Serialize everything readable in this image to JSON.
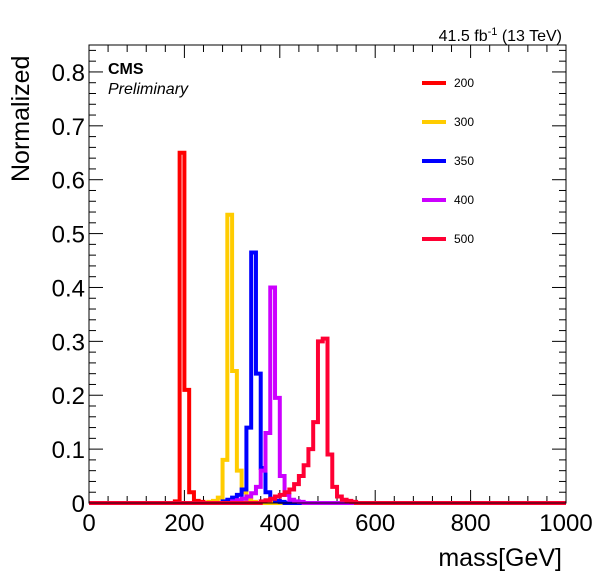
{
  "chart_data": {
    "type": "line",
    "lumi_label": "41.5 fb",
    "lumi_exponent": "-1",
    "energy_label": " (13 TeV)",
    "cms_label": "CMS",
    "preliminary_label": "Preliminary",
    "xlabel": "mass[GeV]",
    "ylabel": "Normalized",
    "xlim": [
      0,
      1000
    ],
    "ylim": [
      0,
      0.85
    ],
    "x_ticks": [
      0,
      200,
      400,
      600,
      800,
      1000
    ],
    "y_ticks": [
      0,
      0.1,
      0.2,
      0.3,
      0.4,
      0.5,
      0.6,
      0.7,
      0.8
    ],
    "bin_width": 10,
    "legend_position": "top-right",
    "series": [
      {
        "name": "200",
        "color": "#ff0000",
        "bins": [
          [
            180,
            0.003
          ],
          [
            190,
            0.65
          ],
          [
            200,
            0.21
          ],
          [
            210,
            0.02
          ],
          [
            220,
            0.004
          ],
          [
            230,
            0.002
          ]
        ]
      },
      {
        "name": "300",
        "color": "#ffcc00",
        "bins": [
          [
            250,
            0.002
          ],
          [
            260,
            0.004
          ],
          [
            270,
            0.01
          ],
          [
            280,
            0.08
          ],
          [
            290,
            0.535
          ],
          [
            300,
            0.245
          ],
          [
            310,
            0.06
          ],
          [
            320,
            0.02
          ],
          [
            330,
            0.006
          ],
          [
            340,
            0.002
          ]
        ]
      },
      {
        "name": "350",
        "color": "#0000ff",
        "bins": [
          [
            280,
            0.003
          ],
          [
            290,
            0.006
          ],
          [
            300,
            0.01
          ],
          [
            310,
            0.015
          ],
          [
            320,
            0.025
          ],
          [
            330,
            0.14
          ],
          [
            340,
            0.465
          ],
          [
            350,
            0.24
          ],
          [
            360,
            0.065
          ],
          [
            370,
            0.02
          ],
          [
            380,
            0.008
          ],
          [
            390,
            0.004
          ],
          [
            400,
            0.002
          ]
        ]
      },
      {
        "name": "400",
        "color": "#cc00ff",
        "bins": [
          [
            300,
            0.003
          ],
          [
            310,
            0.005
          ],
          [
            320,
            0.008
          ],
          [
            330,
            0.012
          ],
          [
            340,
            0.018
          ],
          [
            350,
            0.03
          ],
          [
            360,
            0.06
          ],
          [
            370,
            0.13
          ],
          [
            380,
            0.4
          ],
          [
            390,
            0.195
          ],
          [
            400,
            0.05
          ],
          [
            410,
            0.015
          ],
          [
            420,
            0.006
          ],
          [
            430,
            0.003
          ],
          [
            440,
            0.002
          ]
        ]
      },
      {
        "name": "500",
        "color": "#ff0033",
        "bins": [
          [
            360,
            0.003
          ],
          [
            370,
            0.005
          ],
          [
            380,
            0.008
          ],
          [
            390,
            0.012
          ],
          [
            400,
            0.015
          ],
          [
            410,
            0.02
          ],
          [
            420,
            0.025
          ],
          [
            430,
            0.035
          ],
          [
            440,
            0.05
          ],
          [
            450,
            0.07
          ],
          [
            460,
            0.1
          ],
          [
            470,
            0.15
          ],
          [
            480,
            0.3
          ],
          [
            490,
            0.305
          ],
          [
            500,
            0.09
          ],
          [
            510,
            0.03
          ],
          [
            520,
            0.012
          ],
          [
            530,
            0.006
          ],
          [
            540,
            0.004
          ],
          [
            550,
            0.002
          ]
        ]
      }
    ]
  }
}
